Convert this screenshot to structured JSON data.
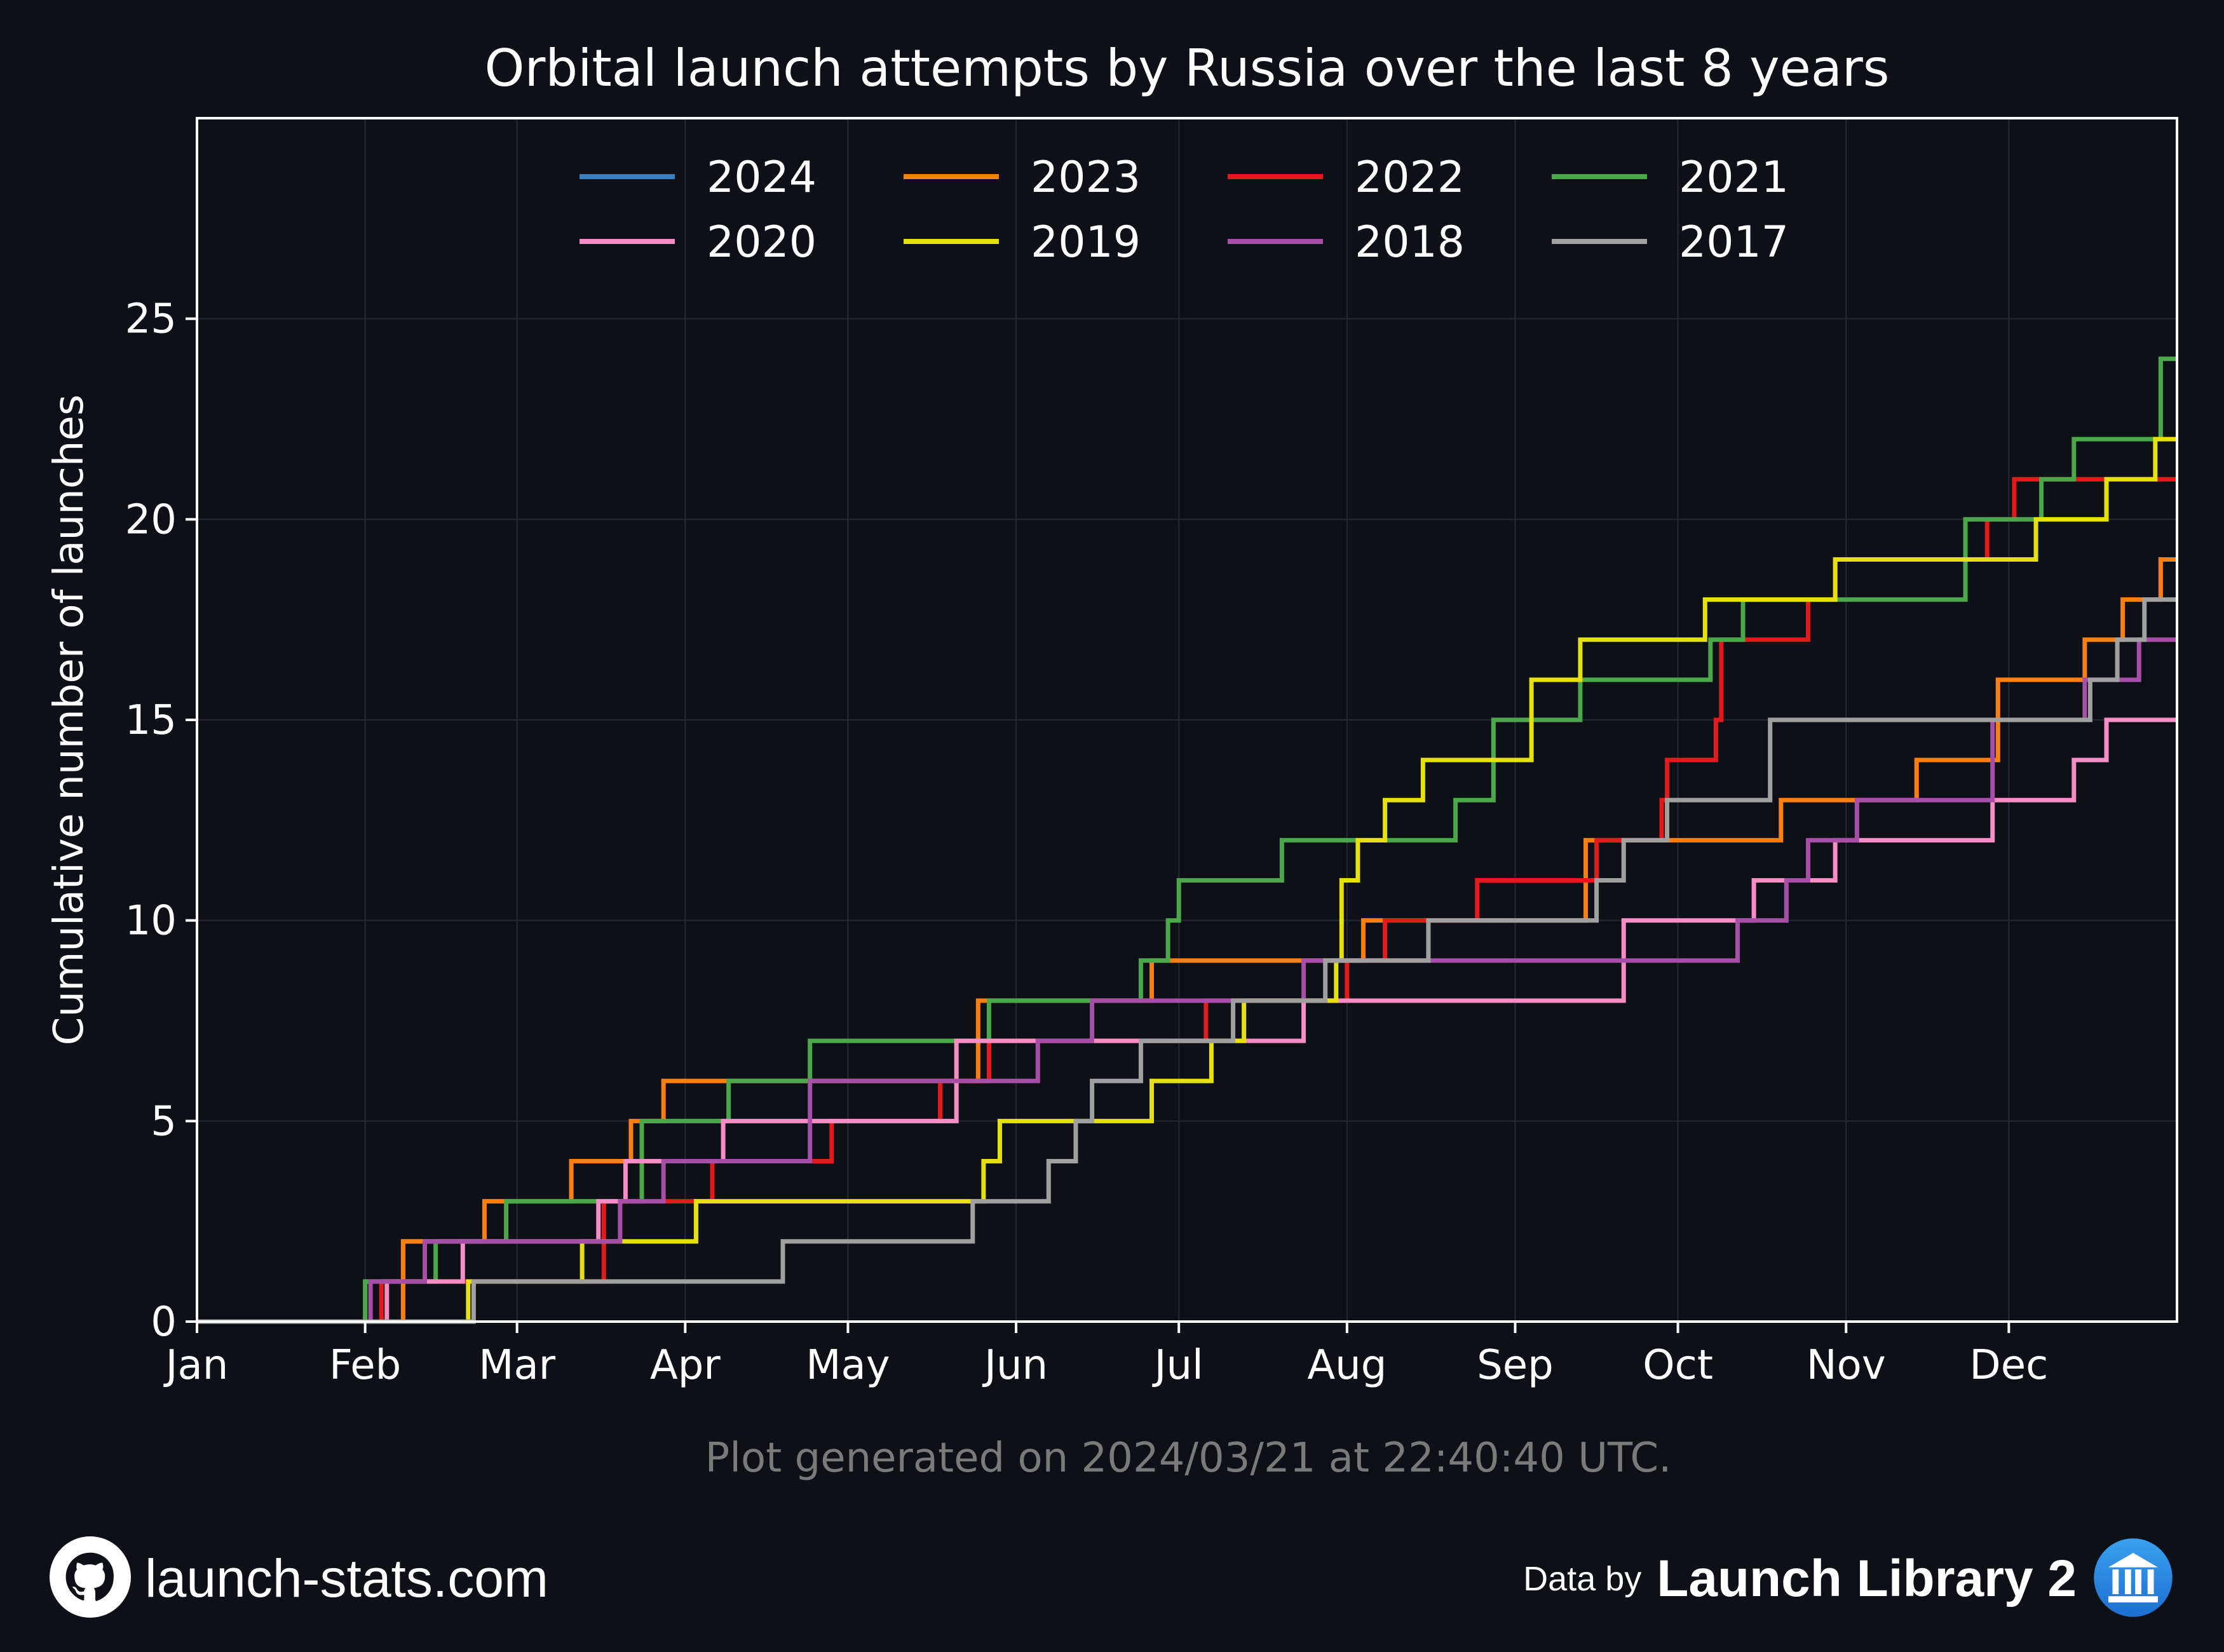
{
  "chart_data": {
    "type": "line",
    "title": "Orbital launch attempts by Russia over the last 8 years",
    "ylabel": "Cumulative number of launches",
    "xlabel": "",
    "xlim": [
      0,
      365
    ],
    "ylim": [
      0,
      30
    ],
    "yticks": [
      0,
      5,
      10,
      15,
      20,
      25
    ],
    "month_ticks": [
      {
        "label": "Jan",
        "day": 0
      },
      {
        "label": "Feb",
        "day": 31
      },
      {
        "label": "Mar",
        "day": 59
      },
      {
        "label": "Apr",
        "day": 90
      },
      {
        "label": "May",
        "day": 120
      },
      {
        "label": "Jun",
        "day": 151
      },
      {
        "label": "Jul",
        "day": 181
      },
      {
        "label": "Aug",
        "day": 212
      },
      {
        "label": "Sep",
        "day": 243
      },
      {
        "label": "Oct",
        "day": 273
      },
      {
        "label": "Nov",
        "day": 304
      },
      {
        "label": "Dec",
        "day": 334
      }
    ],
    "grid": true,
    "legend_position": "top-center",
    "series": [
      {
        "name": "2024",
        "color": "#3a7fbf",
        "x": [
          31,
          38,
          53
        ],
        "y": [
          1,
          2,
          3
        ]
      },
      {
        "name": "2023",
        "color": "#ff7f0e",
        "x": [
          38,
          53,
          69,
          80,
          86,
          144,
          176,
          215,
          256,
          292,
          317,
          332,
          348,
          355,
          362
        ],
        "y": [
          2,
          3,
          4,
          5,
          6,
          8,
          9,
          10,
          12,
          13,
          14,
          16,
          17,
          18,
          19
        ]
      },
      {
        "name": "2022",
        "color": "#e31a1c",
        "x": [
          34,
          75,
          95,
          117,
          137,
          146,
          186,
          212,
          219,
          236,
          258,
          270,
          271,
          280,
          281,
          297,
          302,
          330,
          335
        ],
        "y": [
          1,
          3,
          4,
          5,
          6,
          7,
          8,
          9,
          10,
          11,
          12,
          13,
          14,
          15,
          17,
          18,
          19,
          20,
          21
        ]
      },
      {
        "name": "2021",
        "color": "#4aa84a",
        "x": [
          31,
          44,
          57,
          82,
          98,
          113,
          146,
          174,
          179,
          181,
          200,
          232,
          239,
          255,
          279,
          285,
          298,
          326,
          340,
          346,
          362
        ],
        "y": [
          1,
          2,
          3,
          5,
          6,
          7,
          8,
          9,
          10,
          11,
          12,
          13,
          15,
          16,
          17,
          18,
          18,
          20,
          21,
          22,
          24
        ]
      },
      {
        "name": "2020",
        "color": "#f68dc5",
        "x": [
          35,
          49,
          74,
          79,
          97,
          140,
          204,
          263,
          287,
          302,
          331,
          346,
          352
        ],
        "y": [
          1,
          2,
          3,
          4,
          5,
          7,
          8,
          10,
          11,
          12,
          13,
          14,
          15
        ]
      },
      {
        "name": "2019",
        "color": "#e6e10c",
        "x": [
          50,
          71,
          92,
          145,
          147,
          148,
          176,
          187,
          193,
          210,
          211,
          214,
          219,
          226,
          246,
          255,
          268,
          278,
          302,
          339,
          344,
          352,
          361
        ],
        "y": [
          1,
          2,
          3,
          4,
          4,
          5,
          6,
          7,
          8,
          9,
          11,
          12,
          13,
          14,
          16,
          17,
          17,
          18,
          19,
          20,
          20,
          21,
          22
        ]
      },
      {
        "name": "2018",
        "color": "#a64ea8",
        "x": [
          32,
          42,
          78,
          86,
          113,
          155,
          165,
          204,
          284,
          293,
          297,
          306,
          331,
          348,
          358
        ],
        "y": [
          1,
          2,
          3,
          4,
          6,
          7,
          8,
          9,
          10,
          11,
          12,
          13,
          15,
          16,
          17
        ]
      },
      {
        "name": "2017",
        "color": "#a0a0a0",
        "x": [
          51,
          108,
          143,
          157,
          162,
          165,
          174,
          191,
          208,
          227,
          258,
          263,
          271,
          290,
          349,
          354,
          359
        ],
        "y": [
          1,
          2,
          3,
          4,
          5,
          6,
          7,
          8,
          9,
          10,
          11,
          12,
          13,
          15,
          16,
          17,
          18
        ]
      }
    ]
  },
  "footer": {
    "generated_note": "Plot generated on 2024/03/21 at 22:40:40 UTC.",
    "site": "launch-stats.com",
    "data_by": "Data by",
    "source": "Launch Library 2"
  }
}
